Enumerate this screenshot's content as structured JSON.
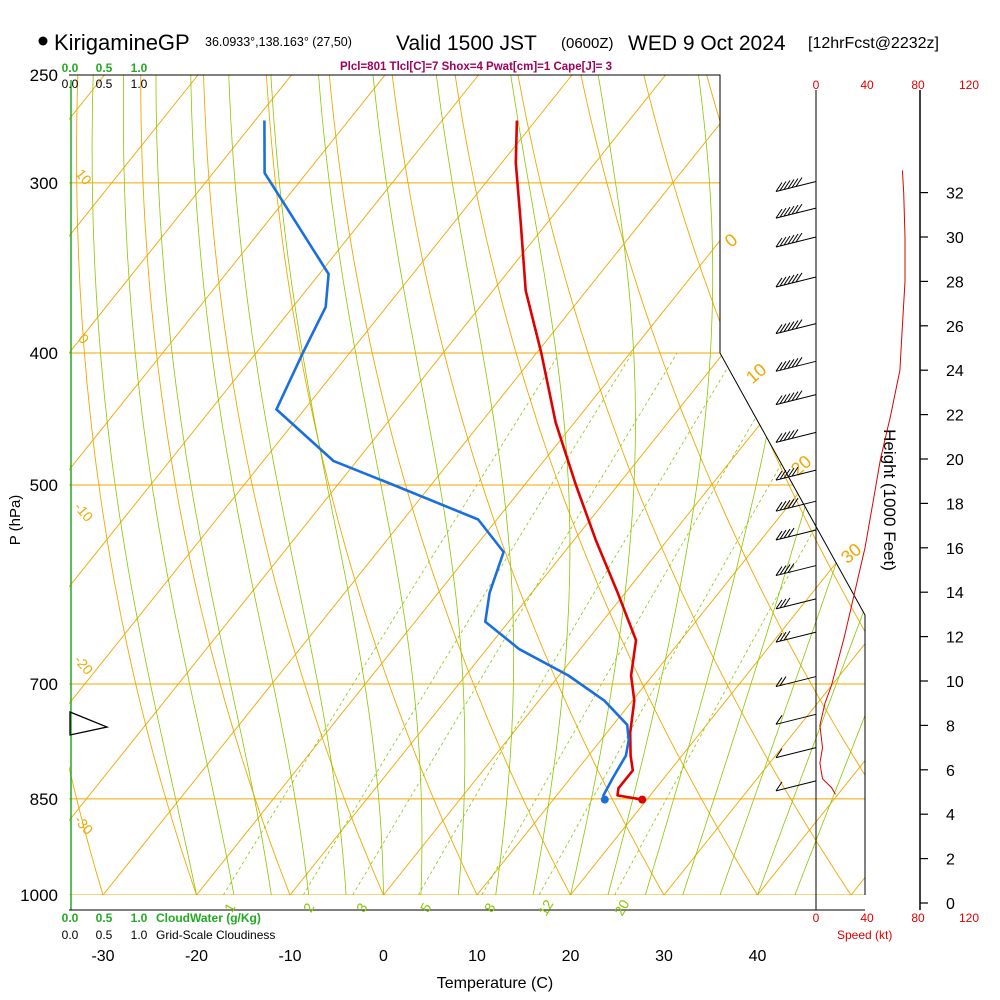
{
  "header": {
    "station": "KirigamineGP",
    "coords": "36.0933°,138.163° (27,50)",
    "valid": "Valid 1500 JST",
    "zulu": "(0600Z)",
    "date": "WED 9 Oct 2024",
    "fcst": "[12hrFcst@2232z]",
    "indices": "Plcl=801 Tlcl[C]=7 Shox=4 Pwat[cm]=1 Cape[J]= 3"
  },
  "colors": {
    "temperature": "#e00000",
    "dewpoint": "#1a6fe0",
    "isotherm": "#f0a800",
    "dry_adiabat": "#f0a800",
    "moist_adiabat": "#88c800",
    "mixing_ratio": "#88c800",
    "cloudwater": "#22aa22",
    "wind_speed": "#e00000",
    "title_indices": "#a0005a"
  },
  "chart_data": {
    "type": "line",
    "subtype": "skew-T log-P sounding",
    "xlabel": "Temperature (C)",
    "ylabel": "P (hPa)",
    "right_axis_label": "Height (1000 Feet)",
    "x_ticks": [
      -30,
      -20,
      -10,
      0,
      10,
      20,
      30,
      40
    ],
    "x_tick_labels": [
      "-30",
      "-20",
      "-10",
      "0",
      "10",
      "20",
      "30",
      "40"
    ],
    "pressure_ticks": [
      250,
      300,
      400,
      500,
      700,
      850,
      1000
    ],
    "pressure_tick_labels": [
      "250",
      "300",
      "400",
      "500",
      "700",
      "850",
      "1000"
    ],
    "pressure_range": [
      1000,
      250
    ],
    "height_ticks": [
      0,
      2,
      4,
      6,
      8,
      10,
      12,
      14,
      16,
      18,
      20,
      22,
      24,
      26,
      28,
      30,
      32
    ],
    "height_tick_labels": [
      "0",
      "2",
      "4",
      "6",
      "8",
      "10",
      "12",
      "14",
      "16",
      "18",
      "20",
      "22",
      "24",
      "26",
      "28",
      "30",
      "32"
    ],
    "cloudwater_scale": [
      "0.0",
      "0.5",
      "1.0"
    ],
    "cloudiness_scale": [
      "0.0",
      "0.5",
      "1.0"
    ],
    "cloudwater_label": "CloudWater (g/Kg)",
    "cloudiness_label": "Grid-Scale Cloudiness",
    "wind_speed_label": "Speed (kt)",
    "wind_speed_ticks": [
      "0",
      "40",
      "80",
      "120"
    ],
    "isotherm_labels": [
      "0",
      "10",
      "20",
      "30"
    ],
    "dry_adiabat_labels": [
      "10",
      "0",
      "-10",
      "-20",
      "-30"
    ],
    "mixing_ratio_labels": [
      "1",
      "2",
      "3",
      "5",
      "8",
      "12",
      "20"
    ],
    "temperature_profile": {
      "name": "Temperature",
      "pressure": [
        851,
        845,
        835,
        810,
        790,
        760,
        720,
        690,
        650,
        600,
        550,
        500,
        450,
        400,
        360,
        320,
        290,
        270
      ],
      "temperature": [
        19.5,
        16.5,
        16.0,
        16.0,
        14.5,
        12.5,
        10.2,
        7.7,
        5.2,
        -0.8,
        -7.5,
        -14.5,
        -22.0,
        -29.5,
        -36.5,
        -43.0,
        -48.5,
        -52.0
      ]
    },
    "dewpoint_profile": {
      "name": "Dewpoint",
      "pressure": [
        851,
        845,
        820,
        790,
        770,
        750,
        720,
        690,
        660,
        630,
        600,
        560,
        530,
        500,
        480,
        440,
        400,
        370,
        350,
        310,
        295,
        270
      ],
      "dewpoint": [
        15.5,
        15.0,
        14.5,
        14.0,
        13.0,
        11.5,
        7.0,
        1.0,
        -6.5,
        -12.5,
        -14.5,
        -16.5,
        -22.0,
        -34.0,
        -42.5,
        -53.0,
        -55.0,
        -56.5,
        -59.0,
        -70.0,
        -74.5,
        -79.0
      ]
    },
    "surface_marker_temperature": 19.5,
    "surface_marker_dewpoint": 15.5,
    "surface_pressure": 851,
    "wind_speed_profile": {
      "height_kft": [
        4.9,
        5.2,
        5.6,
        6.3,
        7.0,
        8.0,
        9.0,
        9.8,
        12.0,
        14.0,
        16.0,
        18.0,
        20.0,
        22.0,
        24.0,
        26.0,
        28.0,
        30.0,
        32.0,
        33.0
      ],
      "speed_kt": [
        15,
        12,
        5,
        3,
        5,
        3,
        7,
        12,
        22,
        30,
        38,
        44,
        50,
        58,
        65,
        67,
        69,
        69,
        68,
        67
      ]
    },
    "wind_barb_heights_kft": [
      32.5,
      31.3,
      30.0,
      28.2,
      26.1,
      24.4,
      22.9,
      21.2,
      19.5,
      18.1,
      16.8,
      15.2,
      13.7,
      12.2,
      10.2,
      8.5,
      7.0,
      5.5
    ],
    "wind_barb_speeds_kt": [
      65,
      65,
      65,
      62,
      60,
      58,
      55,
      52,
      50,
      45,
      40,
      35,
      30,
      25,
      15,
      5,
      5,
      10
    ],
    "grid": true,
    "legend": "none"
  }
}
